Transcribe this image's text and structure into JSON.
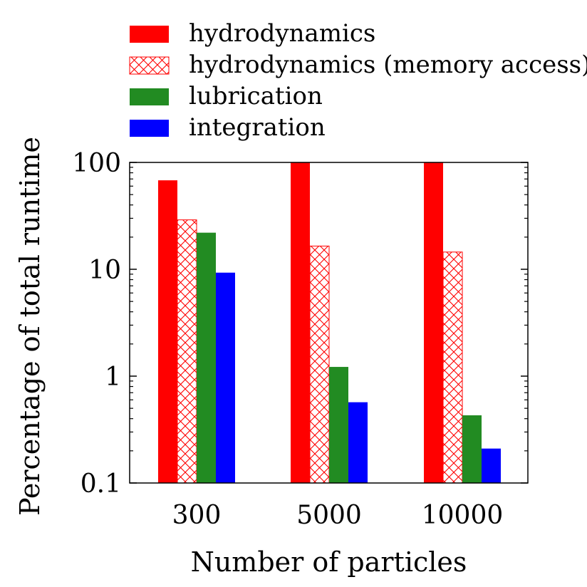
{
  "chart_data": {
    "type": "bar",
    "title": "",
    "xlabel": "Number of particles",
    "ylabel": "Percentage of total runtime",
    "yscale": "log",
    "ylim": [
      0.1,
      100
    ],
    "yticks": [
      {
        "value": 0.1,
        "label": "0.1"
      },
      {
        "value": 1,
        "label": "1"
      },
      {
        "value": 10,
        "label": "10"
      },
      {
        "value": 100,
        "label": "100"
      }
    ],
    "categories": [
      "300",
      "5000",
      "10000"
    ],
    "series": [
      {
        "name": "hydrodynamics",
        "color": "#ff0000",
        "pattern": "solid",
        "values": [
          68,
          100,
          100
        ]
      },
      {
        "name": "hydrodynamics (memory access)",
        "color": "#ff0000",
        "pattern": "crosshatch",
        "values": [
          29,
          16.5,
          14.5
        ]
      },
      {
        "name": "lubrication",
        "color": "#228b22",
        "pattern": "solid",
        "values": [
          22,
          1.22,
          0.43
        ]
      },
      {
        "name": "integration",
        "color": "#0000ff",
        "pattern": "solid",
        "values": [
          9.3,
          0.57,
          0.21
        ]
      }
    ],
    "legend_position": "above",
    "grid": false
  }
}
